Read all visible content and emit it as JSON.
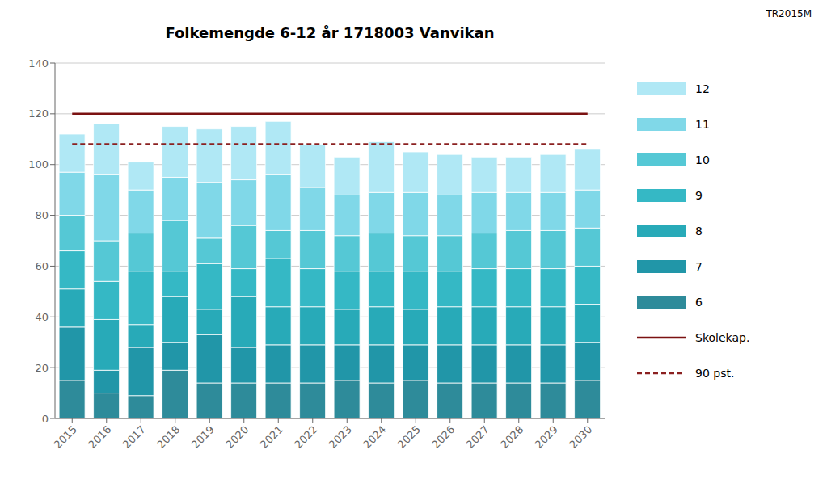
{
  "chart_data": {
    "type": "bar",
    "title": "Folkemengde 6-12 år 1718003 Vanvikan",
    "annotations": [
      "TR2015M"
    ],
    "stacked": true,
    "grid": true,
    "categories": [
      2015,
      2016,
      2017,
      2018,
      2019,
      2020,
      2021,
      2022,
      2023,
      2024,
      2025,
      2026,
      2027,
      2028,
      2029,
      2030
    ],
    "ylim": [
      0,
      140
    ],
    "yticks": [
      0,
      20,
      40,
      60,
      80,
      100,
      120,
      140
    ],
    "series": [
      {
        "name": "6",
        "color": "#2e8b9a",
        "values": [
          15,
          10,
          9,
          19,
          14,
          14,
          14,
          14,
          15,
          14,
          15,
          14,
          14,
          14,
          14,
          15
        ]
      },
      {
        "name": "7",
        "color": "#2196a8",
        "values": [
          21,
          9,
          19,
          11,
          19,
          14,
          15,
          15,
          14,
          15,
          14,
          15,
          15,
          15,
          15,
          15
        ]
      },
      {
        "name": "8",
        "color": "#28aab8",
        "values": [
          15,
          20,
          9,
          18,
          10,
          20,
          15,
          15,
          14,
          15,
          14,
          15,
          15,
          15,
          15,
          15
        ]
      },
      {
        "name": "9",
        "color": "#35b8c5",
        "values": [
          15,
          15,
          21,
          10,
          18,
          11,
          19,
          15,
          15,
          14,
          15,
          14,
          15,
          15,
          15,
          15
        ]
      },
      {
        "name": "10",
        "color": "#55c8d5",
        "values": [
          14,
          16,
          15,
          20,
          10,
          17,
          11,
          15,
          14,
          15,
          14,
          14,
          14,
          15,
          15,
          15
        ]
      },
      {
        "name": "11",
        "color": "#80d8e8",
        "values": [
          17,
          26,
          17,
          17,
          22,
          18,
          22,
          17,
          16,
          16,
          17,
          16,
          16,
          15,
          15,
          15
        ]
      },
      {
        "name": "12",
        "color": "#b0e8f5",
        "values": [
          15,
          20,
          11,
          20,
          21,
          21,
          21,
          17,
          15,
          20,
          16,
          16,
          14,
          14,
          15,
          16
        ]
      },
      {
        "name": "Skolekap.",
        "type": "line",
        "line_style": "solid",
        "color": "#7b1212",
        "values": [
          120,
          120,
          120,
          120,
          120,
          120,
          120,
          120,
          120,
          120,
          120,
          120,
          120,
          120,
          120,
          120
        ]
      },
      {
        "name": "90 pst.",
        "type": "line",
        "line_style": "dashed",
        "color": "#8b2020",
        "values": [
          108,
          108,
          108,
          108,
          108,
          108,
          108,
          108,
          108,
          108,
          108,
          108,
          108,
          108,
          108,
          108
        ]
      }
    ]
  }
}
